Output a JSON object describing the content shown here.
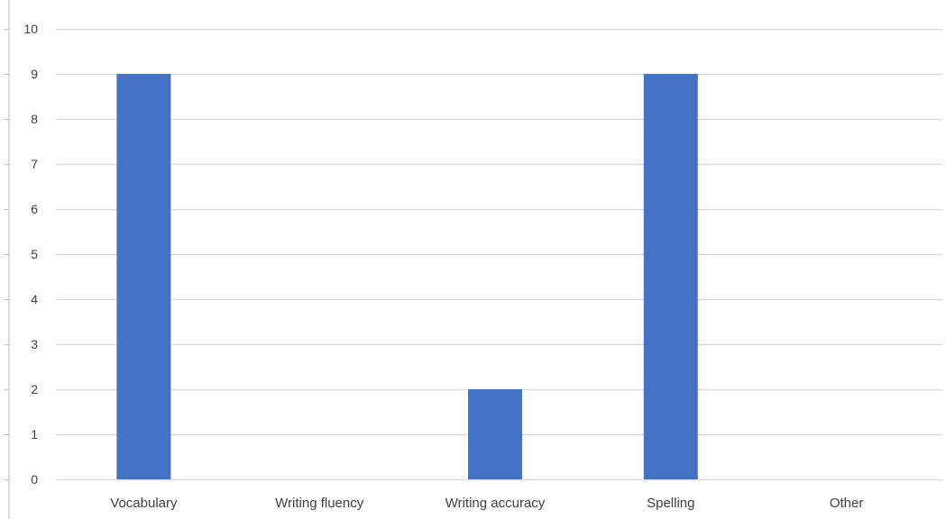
{
  "chart_data": {
    "type": "bar",
    "title": "",
    "xlabel": "",
    "ylabel": "",
    "categories": [
      "Vocabulary",
      "Writing fluency",
      "Writing accuracy",
      "Spelling",
      "Other"
    ],
    "values": [
      9,
      0,
      2,
      9,
      0
    ],
    "ylim": [
      0,
      10
    ],
    "yticks": [
      0,
      1,
      2,
      3,
      4,
      5,
      6,
      7,
      8,
      9,
      10
    ],
    "grid": true,
    "legend": "none",
    "colors": {
      "bar": "#4472C4",
      "grid": "#D9D9D9",
      "axis_text": "#404040",
      "left_axis": "#BFBFBF"
    }
  }
}
